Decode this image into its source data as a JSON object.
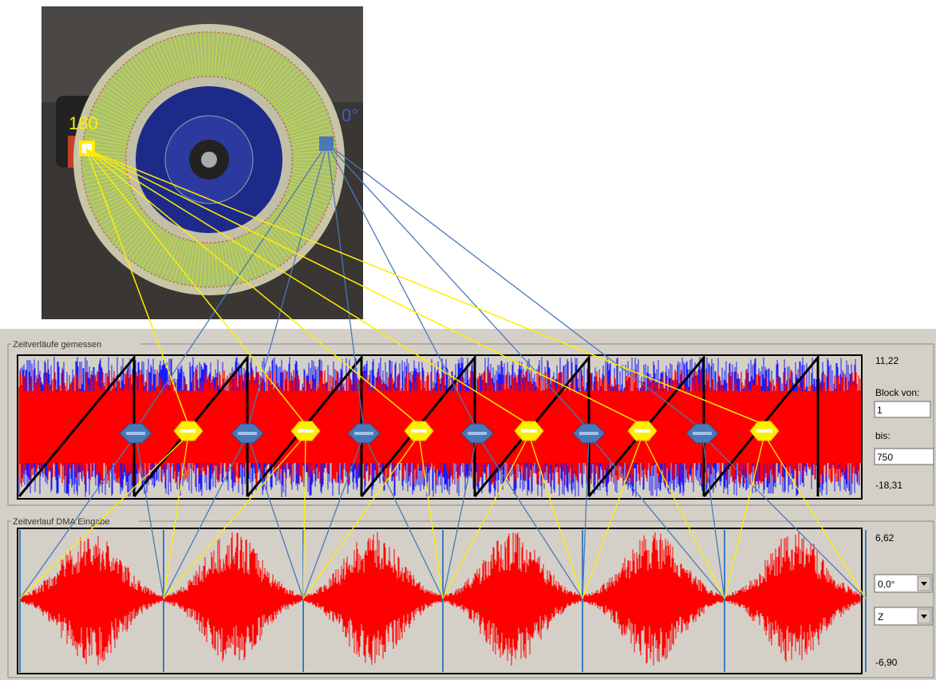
{
  "photo": {
    "label_180": "180",
    "label_0": "0°"
  },
  "panel_top": {
    "title": "Zeitverläufe gemessen",
    "y_max": "11,22",
    "y_min": "-18,31",
    "block_from_label": "Block von:",
    "block_from": "1",
    "block_to_label": "bis:",
    "block_to": "750"
  },
  "panel_bottom": {
    "title": "Zeitverlauf DMA Eingabe",
    "y_max": "6,62",
    "y_min": "-6,90",
    "angle": "0,0°",
    "axis": "Z"
  }
}
